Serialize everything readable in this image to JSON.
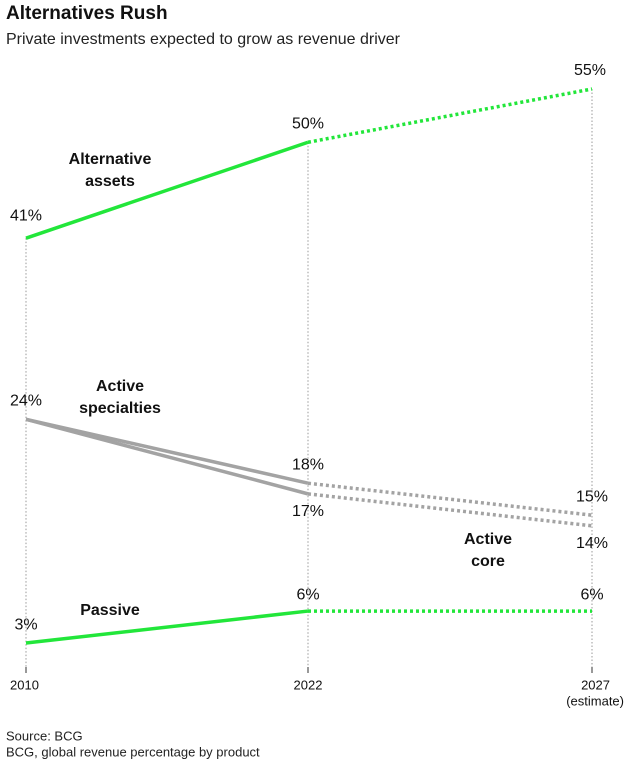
{
  "chart_data": {
    "type": "line",
    "title": "Alternatives Rush",
    "subtitle": "Private investments expected to grow as revenue driver",
    "categories": [
      "2010",
      "2022",
      "2027"
    ],
    "estimate_note": "(estimate)",
    "estimate_from": "2022",
    "ylim": [
      0,
      55
    ],
    "grid": true,
    "series": [
      {
        "name": "Alternative assets",
        "color": "#22e63a",
        "values": [
          41,
          50,
          55
        ],
        "value_labels": [
          "41%",
          "50%",
          "55%"
        ]
      },
      {
        "name": "Active specialties",
        "color": "#a3a3a3",
        "values": [
          24,
          18,
          15
        ],
        "value_labels": [
          "24%",
          "18%",
          "15%"
        ]
      },
      {
        "name": "Active core",
        "color": "#a3a3a3",
        "values": [
          24,
          17,
          14
        ],
        "value_labels": [
          "24%",
          "17%",
          "14%"
        ]
      },
      {
        "name": "Passive",
        "color": "#22e63a",
        "values": [
          3,
          6,
          6
        ],
        "value_labels": [
          "3%",
          "6%",
          "6%"
        ]
      }
    ],
    "source": "Source: BCG",
    "note": "BCG, global revenue percentage by product"
  }
}
